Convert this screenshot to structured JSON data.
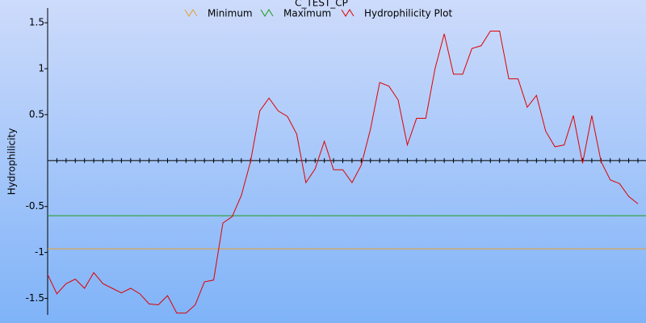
{
  "chart_data": {
    "type": "line",
    "title": "C_TEST_CP",
    "y_label": "Hydrophilicity",
    "ylim": [
      -1.68,
      1.66
    ],
    "yticks": [
      -1.5,
      -1,
      -0.5,
      0.5,
      1,
      1.5
    ],
    "series": [
      {
        "name": "Minimum",
        "color": "#e8a030",
        "level": -0.96
      },
      {
        "name": "Maximum",
        "color": "#1e9a1e",
        "level": -0.6
      },
      {
        "name": "Hydrophilicity Plot",
        "color": "#e00000",
        "values": [
          -1.24,
          -1.45,
          -1.34,
          -1.29,
          -1.39,
          -1.22,
          -1.34,
          -1.39,
          -1.44,
          -1.39,
          -1.45,
          -1.56,
          -1.57,
          -1.47,
          -1.66,
          -1.66,
          -1.57,
          -1.32,
          -1.3,
          -0.68,
          -0.61,
          -0.38,
          -0.01,
          0.54,
          0.68,
          0.54,
          0.48,
          0.29,
          -0.24,
          -0.09,
          0.21,
          -0.1,
          -0.1,
          -0.24,
          -0.05,
          0.34,
          0.85,
          0.81,
          0.66,
          0.17,
          0.46,
          0.46,
          1.0,
          1.38,
          0.94,
          0.94,
          1.22,
          1.25,
          1.41,
          1.41,
          0.89,
          0.89,
          0.58,
          0.71,
          0.32,
          0.15,
          0.17,
          0.49,
          -0.03,
          0.49,
          -0.01,
          -0.21,
          -0.25,
          -0.39,
          -0.47
        ]
      }
    ]
  }
}
